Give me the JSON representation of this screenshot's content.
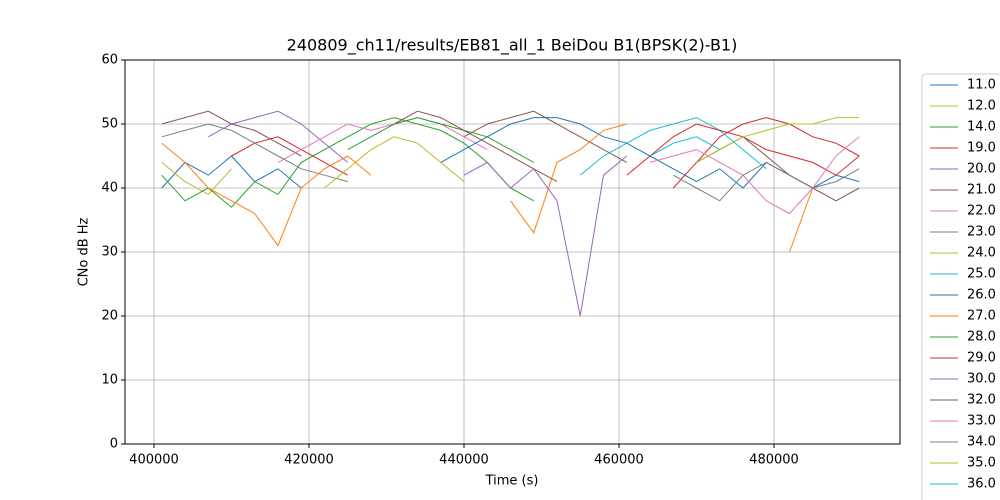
{
  "chart_data": {
    "type": "line",
    "title": "240809_ch11/results/EB81_all_1 BeiDou B1(BPSK(2)-B1)",
    "xlabel": "Time (s)",
    "ylabel": "CNo dB Hz",
    "xlim": [
      396258,
      496258
    ],
    "ylim": [
      0,
      60
    ],
    "xticks": [
      400000,
      420000,
      440000,
      460000,
      480000
    ],
    "yticks": [
      0,
      10,
      20,
      30,
      40,
      50,
      60
    ],
    "grid": true,
    "legend": "outside-right",
    "x": [
      401000,
      404000,
      407000,
      410000,
      413000,
      416000,
      419000,
      422000,
      425000,
      428000,
      431000,
      434000,
      437000,
      440000,
      443000,
      446000,
      449000,
      452000,
      455000,
      458000,
      461000,
      464000,
      467000,
      470000,
      473000,
      476000,
      479000,
      482000,
      485000,
      488000,
      491000
    ],
    "series": [
      {
        "name": "11.0",
        "color": "#1f77b4",
        "values": [
          40,
          44,
          42,
          45,
          41,
          43,
          40,
          null,
          null,
          null,
          null,
          null,
          null,
          null,
          null,
          null,
          null,
          null,
          null,
          null,
          null,
          null,
          null,
          41,
          43,
          40,
          44,
          42,
          40,
          42,
          41
        ]
      },
      {
        "name": "12.0",
        "color": "#bcbd22",
        "values": [
          44,
          41,
          39,
          43,
          null,
          null,
          null,
          null,
          null,
          null,
          null,
          null,
          null,
          null,
          null,
          null,
          null,
          null,
          null,
          null,
          null,
          null,
          null,
          null,
          null,
          null,
          null,
          null,
          null,
          null,
          null
        ]
      },
      {
        "name": "14.0",
        "color": "#2ca02c",
        "values": [
          42,
          38,
          40,
          37,
          41,
          39,
          44,
          46,
          48,
          50,
          51,
          50,
          49,
          47,
          44,
          40,
          38,
          null,
          null,
          null,
          null,
          null,
          null,
          null,
          null,
          null,
          null,
          null,
          null,
          null,
          null
        ]
      },
      {
        "name": "19.0",
        "color": "#d62728",
        "values": [
          null,
          null,
          null,
          45,
          47,
          48,
          46,
          44,
          42,
          null,
          null,
          null,
          null,
          null,
          null,
          null,
          null,
          null,
          null,
          null,
          null,
          null,
          40,
          44,
          48,
          50,
          51,
          50,
          48,
          47,
          45
        ]
      },
      {
        "name": "20.0",
        "color": "#9467bd",
        "values": [
          null,
          null,
          48,
          50,
          51,
          52,
          50,
          47,
          44,
          null,
          null,
          null,
          null,
          null,
          null,
          null,
          null,
          null,
          null,
          null,
          null,
          null,
          null,
          null,
          null,
          null,
          null,
          null,
          null,
          null,
          null
        ]
      },
      {
        "name": "21.0",
        "color": "#8c564b",
        "values": [
          50,
          51,
          52,
          50,
          49,
          47,
          45,
          null,
          null,
          null,
          null,
          null,
          null,
          48,
          50,
          51,
          52,
          50,
          48,
          46,
          44,
          null,
          null,
          null,
          null,
          null,
          null,
          null,
          null,
          null,
          null
        ]
      },
      {
        "name": "22.0",
        "color": "#e377c2",
        "values": [
          null,
          null,
          null,
          null,
          null,
          44,
          46,
          48,
          50,
          49,
          50,
          51,
          50,
          48,
          46,
          null,
          null,
          null,
          null,
          null,
          null,
          null,
          null,
          null,
          null,
          null,
          null,
          null,
          null,
          null,
          null
        ]
      },
      {
        "name": "23.0",
        "color": "#7f7f7f",
        "values": [
          48,
          49,
          50,
          49,
          47,
          45,
          43,
          42,
          41,
          null,
          null,
          null,
          null,
          null,
          null,
          null,
          null,
          null,
          null,
          null,
          null,
          null,
          null,
          null,
          null,
          null,
          null,
          null,
          null,
          null,
          null
        ]
      },
      {
        "name": "24.0",
        "color": "#bcbd22",
        "values": [
          null,
          null,
          null,
          null,
          null,
          null,
          null,
          40,
          43,
          46,
          48,
          47,
          44,
          41,
          null,
          null,
          null,
          null,
          null,
          null,
          null,
          null,
          null,
          null,
          null,
          null,
          null,
          null,
          null,
          null,
          null
        ]
      },
      {
        "name": "25.0",
        "color": "#17becf",
        "values": [
          null,
          null,
          null,
          null,
          null,
          null,
          null,
          null,
          null,
          null,
          null,
          null,
          null,
          null,
          null,
          null,
          null,
          null,
          42,
          45,
          47,
          49,
          50,
          51,
          49,
          46,
          43,
          null,
          null,
          null,
          null
        ]
      },
      {
        "name": "26.0",
        "color": "#1f77b4",
        "values": [
          null,
          null,
          null,
          null,
          null,
          null,
          null,
          null,
          null,
          null,
          null,
          null,
          44,
          46,
          48,
          50,
          51,
          51,
          50,
          48,
          47,
          45,
          43,
          41,
          null,
          null,
          null,
          null,
          null,
          null,
          null
        ]
      },
      {
        "name": "27.0",
        "color": "#ff7f0e",
        "values": [
          47,
          44,
          40,
          38,
          36,
          31,
          40,
          43,
          45,
          42,
          null,
          null,
          null,
          null,
          null,
          38,
          33,
          44,
          46,
          49,
          50,
          null,
          null,
          null,
          null,
          null,
          null,
          30,
          40,
          null,
          null
        ]
      },
      {
        "name": "28.0",
        "color": "#2ca02c",
        "values": [
          null,
          null,
          null,
          null,
          null,
          null,
          null,
          null,
          46,
          48,
          50,
          51,
          50,
          49,
          48,
          46,
          44,
          null,
          null,
          null,
          null,
          null,
          null,
          null,
          null,
          null,
          null,
          null,
          null,
          null,
          null
        ]
      },
      {
        "name": "29.0",
        "color": "#d62728",
        "values": [
          null,
          null,
          null,
          null,
          null,
          null,
          null,
          null,
          null,
          null,
          null,
          null,
          null,
          null,
          null,
          null,
          null,
          null,
          null,
          null,
          42,
          45,
          48,
          50,
          49,
          48,
          46,
          45,
          44,
          42,
          45
        ]
      },
      {
        "name": "30.0",
        "color": "#9467bd",
        "values": [
          null,
          null,
          null,
          null,
          null,
          null,
          null,
          null,
          null,
          null,
          null,
          null,
          null,
          42,
          44,
          40,
          43,
          38,
          20,
          42,
          45,
          null,
          null,
          null,
          null,
          null,
          null,
          null,
          null,
          null,
          null
        ]
      },
      {
        "name": "32.0",
        "color": "#8c564b",
        "values": [
          null,
          null,
          null,
          null,
          null,
          null,
          null,
          null,
          null,
          null,
          50,
          52,
          51,
          49,
          47,
          45,
          43,
          41,
          null,
          null,
          null,
          null,
          null,
          44,
          46,
          48,
          45,
          42,
          40,
          38,
          40
        ]
      },
      {
        "name": "33.0",
        "color": "#e377c2",
        "values": [
          null,
          null,
          null,
          null,
          null,
          null,
          null,
          null,
          null,
          null,
          null,
          null,
          null,
          null,
          null,
          null,
          null,
          null,
          null,
          null,
          null,
          44,
          45,
          46,
          44,
          42,
          38,
          36,
          40,
          45,
          48
        ]
      },
      {
        "name": "34.0",
        "color": "#7f7f7f",
        "values": [
          null,
          null,
          null,
          null,
          null,
          null,
          null,
          null,
          null,
          null,
          null,
          null,
          null,
          null,
          null,
          null,
          null,
          null,
          null,
          null,
          null,
          null,
          42,
          40,
          38,
          42,
          44,
          42,
          40,
          41,
          43
        ]
      },
      {
        "name": "35.0",
        "color": "#bcbd22",
        "values": [
          null,
          null,
          null,
          null,
          null,
          null,
          null,
          null,
          null,
          null,
          null,
          null,
          null,
          null,
          null,
          null,
          null,
          null,
          null,
          null,
          null,
          null,
          null,
          44,
          46,
          48,
          49,
          50,
          50,
          51,
          51
        ]
      },
      {
        "name": "36.0",
        "color": "#17becf",
        "values": [
          null,
          null,
          null,
          null,
          null,
          null,
          null,
          null,
          null,
          null,
          null,
          null,
          null,
          null,
          null,
          null,
          null,
          null,
          null,
          null,
          null,
          45,
          47,
          48,
          46,
          null,
          null,
          null,
          null,
          null,
          null
        ]
      }
    ]
  }
}
